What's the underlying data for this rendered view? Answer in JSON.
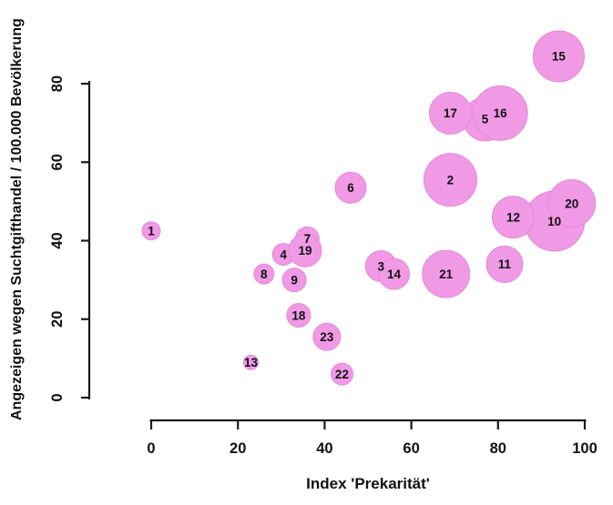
{
  "chart_data": {
    "type": "scatter",
    "subtype": "bubble",
    "title": "",
    "xlabel": "Index 'Prekarität'",
    "ylabel": "Angezeigen wegen Suchtgifthandel / 100.000 Bevölkerung",
    "xlim": [
      0,
      100
    ],
    "ylim": [
      0,
      80
    ],
    "xticks": [
      0,
      20,
      40,
      60,
      80,
      100
    ],
    "yticks": [
      0,
      20,
      40,
      60,
      80
    ],
    "grid": false,
    "legend": "none",
    "colors": {
      "bubble_fill": "#F09AE6",
      "bubble_edge": "#E488D8",
      "axis": "#1a1a1a",
      "text": "#111111"
    },
    "points": [
      {
        "label": "1",
        "x": 0,
        "y": 42.5,
        "r": 10
      },
      {
        "label": "2",
        "x": 69,
        "y": 55.5,
        "r": 29
      },
      {
        "label": "3",
        "x": 53,
        "y": 33.5,
        "r": 17
      },
      {
        "label": "4",
        "x": 30.5,
        "y": 36.5,
        "r": 12
      },
      {
        "label": "5",
        "x": 77,
        "y": 71,
        "r": 24
      },
      {
        "label": "6",
        "x": 46,
        "y": 53.5,
        "r": 17
      },
      {
        "label": "7",
        "x": 36,
        "y": 40.5,
        "r": 13
      },
      {
        "label": "8",
        "x": 26,
        "y": 31.5,
        "r": 11
      },
      {
        "label": "9",
        "x": 33,
        "y": 30,
        "r": 13
      },
      {
        "label": "10",
        "x": 93,
        "y": 45,
        "r": 33
      },
      {
        "label": "11",
        "x": 81.5,
        "y": 34,
        "r": 20
      },
      {
        "label": "12",
        "x": 83.5,
        "y": 46,
        "r": 23
      },
      {
        "label": "13",
        "x": 23,
        "y": 9,
        "r": 8
      },
      {
        "label": "14",
        "x": 56,
        "y": 31.5,
        "r": 17
      },
      {
        "label": "15",
        "x": 94,
        "y": 87,
        "r": 28
      },
      {
        "label": "16",
        "x": 80.5,
        "y": 72.5,
        "r": 30
      },
      {
        "label": "17",
        "x": 69,
        "y": 72.5,
        "r": 23
      },
      {
        "label": "18",
        "x": 34,
        "y": 21,
        "r": 13
      },
      {
        "label": "19",
        "x": 35.5,
        "y": 37.5,
        "r": 18
      },
      {
        "label": "20",
        "x": 97,
        "y": 49.5,
        "r": 26
      },
      {
        "label": "21",
        "x": 68,
        "y": 31.5,
        "r": 26
      },
      {
        "label": "22",
        "x": 44,
        "y": 6,
        "r": 12
      },
      {
        "label": "23",
        "x": 40.5,
        "y": 15.5,
        "r": 15
      }
    ]
  }
}
